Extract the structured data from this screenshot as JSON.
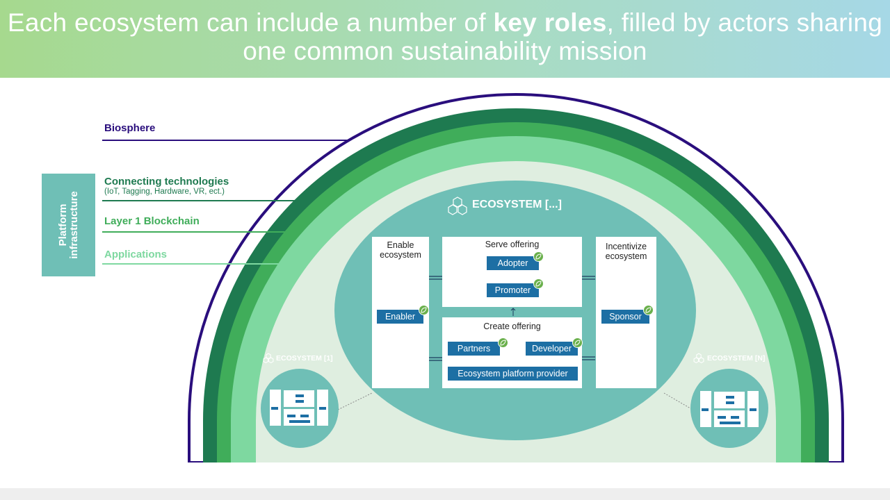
{
  "header": {
    "title_pre": "Each ecosystem can include a number of ",
    "title_bold": "key roles",
    "title_post": ", filled by actors sharing one common sustainability mission"
  },
  "layers": {
    "biosphere": "Biosphere",
    "connecting": "Connecting technologies",
    "connecting_sub": "(IoT, Tagging, Hardware, VR, ect.)",
    "layer1": "Layer 1 Blockchain",
    "applications": "Applications"
  },
  "platform_infrastructure": {
    "line1": "Platform",
    "line2": "infrastructure"
  },
  "ecosystem_main": {
    "label": "ECOSYSTEM [...]",
    "enable": {
      "line1": "Enable",
      "line2": "ecosystem",
      "role": "Enabler"
    },
    "serve": {
      "title": "Serve offering",
      "role1": "Adopter",
      "role2": "Promoter"
    },
    "create": {
      "title": "Create offering",
      "role1": "Partners",
      "role2": "Developer",
      "role3": "Ecosystem platform provider"
    },
    "incentivize": {
      "line1": "Incentivize",
      "line2": "ecosystem",
      "role": "Sponsor"
    }
  },
  "ecosystem_left": {
    "label": "ECOSYSTEM [1]"
  },
  "ecosystem_right": {
    "label": "ECOSYSTEM [N]"
  },
  "colors": {
    "biosphere_ring": "#2a0e7d",
    "dark_green": "#1e7a50",
    "mid_green": "#40ad5a",
    "light_green": "#7ed8a0",
    "pale_green": "#dfeee0",
    "teal": "#6fbfb6",
    "role_blue": "#1d6fa4",
    "leaf_green": "#6ab04c"
  },
  "icons": [
    "hexagon-cluster-icon",
    "leaf-icon",
    "arrow-icon"
  ]
}
